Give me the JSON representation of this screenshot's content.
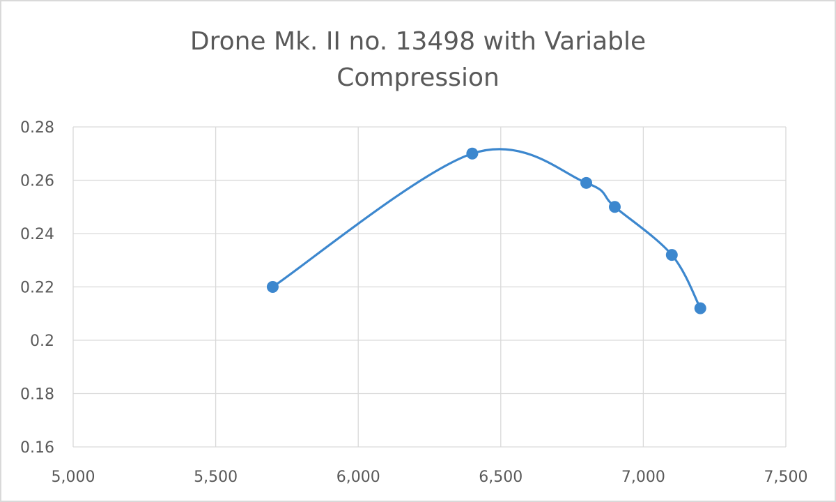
{
  "chart_data": {
    "type": "scatter",
    "title_line1": "Drone Mk. II no. 13498 with Variable",
    "title_line2": "Compression",
    "smooth_line": true,
    "markers": true,
    "series": [
      {
        "x": [
          5700,
          6400,
          6800,
          6900,
          7100,
          7200
        ],
        "y": [
          0.22,
          0.27,
          0.259,
          0.25,
          0.232,
          0.212
        ]
      }
    ],
    "xlim": [
      5000,
      7500
    ],
    "ylim": [
      0.16,
      0.28
    ],
    "x_ticks": [
      {
        "value": 5000,
        "label": "5,000"
      },
      {
        "value": 5500,
        "label": "5,500"
      },
      {
        "value": 6000,
        "label": "6,000"
      },
      {
        "value": 6500,
        "label": "6,500"
      },
      {
        "value": 7000,
        "label": "7,000"
      },
      {
        "value": 7500,
        "label": "7,500"
      }
    ],
    "y_ticks": [
      {
        "value": 0.16,
        "label": "0.16"
      },
      {
        "value": 0.18,
        "label": "0.18"
      },
      {
        "value": 0.2,
        "label": "0.2"
      },
      {
        "value": 0.22,
        "label": "0.22"
      },
      {
        "value": 0.24,
        "label": "0.24"
      },
      {
        "value": 0.26,
        "label": "0.26"
      },
      {
        "value": 0.28,
        "label": "0.28"
      }
    ],
    "grid": true,
    "legend": "none",
    "colors": {
      "series": "#3c87ce",
      "grid": "#d9d9d9",
      "text": "#595959"
    }
  }
}
